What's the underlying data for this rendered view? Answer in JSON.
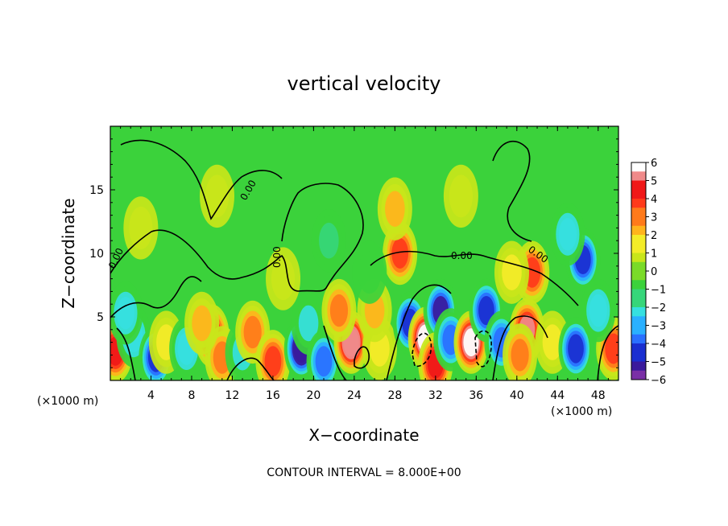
{
  "chart_data": {
    "type": "heatmap",
    "title": "vertical velocity",
    "xlabel": "X−coordinate",
    "ylabel": "Z−coordinate",
    "x_unit_label": "(×1000 m)",
    "y_unit_label": "(×1000 m)",
    "xlim": [
      0,
      50
    ],
    "ylim": [
      0,
      20
    ],
    "x_ticks": [
      4,
      8,
      12,
      16,
      20,
      24,
      28,
      32,
      36,
      40,
      44,
      48
    ],
    "y_ticks": [
      5,
      10,
      15
    ],
    "colorbar_range": [
      -6,
      6
    ],
    "colorbar_ticks": [
      "6",
      "5",
      "4",
      "3",
      "2",
      "1",
      "0",
      "−1",
      "−2",
      "−3",
      "−4",
      "−5",
      "−6"
    ],
    "colormap": [
      "#7a2fa6",
      "#3a1a9c",
      "#1a2fd0",
      "#2a70ff",
      "#2ab0ff",
      "#36e0e0",
      "#36d67a",
      "#3bd23b",
      "#7adb28",
      "#c9e61a",
      "#f4ec28",
      "#ffb41c",
      "#ff7a1a",
      "#ff3a1a",
      "#f01818",
      "#f08a8a",
      "#ffffff"
    ],
    "contour_label": "0.00",
    "note": "CONTOUR INTERVAL = 8.000E+00",
    "cells": [
      {
        "x": 0.5,
        "z": 2.3,
        "w": 4.5
      },
      {
        "x": 2.3,
        "z": 3.5,
        "w": -2.2
      },
      {
        "x": 1.5,
        "z": 5.3,
        "w": -2.5
      },
      {
        "x": 4.5,
        "z": 1.8,
        "w": -4.2
      },
      {
        "x": 5.5,
        "z": 3.0,
        "w": 1.5
      },
      {
        "x": 7.5,
        "z": 2.5,
        "w": -2.3
      },
      {
        "x": 10.0,
        "z": 3.5,
        "w": 4.6
      },
      {
        "x": 11.0,
        "z": 1.8,
        "w": 3.0
      },
      {
        "x": 9.0,
        "z": 4.5,
        "w": 2.0
      },
      {
        "x": 13.0,
        "z": 2.2,
        "w": -2.0
      },
      {
        "x": 14.0,
        "z": 3.8,
        "w": 3.0
      },
      {
        "x": 16.0,
        "z": 1.5,
        "w": 3.5
      },
      {
        "x": 18.8,
        "z": 2.5,
        "w": -5.3
      },
      {
        "x": 19.5,
        "z": 4.5,
        "w": -2.0
      },
      {
        "x": 21.0,
        "z": 1.5,
        "w": -4.0
      },
      {
        "x": 23.7,
        "z": 3.0,
        "w": 5.2
      },
      {
        "x": 22.5,
        "z": 5.5,
        "w": 3.0
      },
      {
        "x": 21.5,
        "z": 11.0,
        "w": -1.8
      },
      {
        "x": 26.5,
        "z": 2.5,
        "w": 1.5
      },
      {
        "x": 26.0,
        "z": 5.5,
        "w": 2.0
      },
      {
        "x": 28.5,
        "z": 10.0,
        "w": 3.5
      },
      {
        "x": 28.0,
        "z": 13.5,
        "w": 2.0
      },
      {
        "x": 29.5,
        "z": 4.5,
        "w": -4.5
      },
      {
        "x": 31.0,
        "z": 3.3,
        "w": 6.0
      },
      {
        "x": 32.5,
        "z": 5.5,
        "w": -5.0
      },
      {
        "x": 32.0,
        "z": 1.3,
        "w": 4.6
      },
      {
        "x": 33.5,
        "z": 3.2,
        "w": -3.5
      },
      {
        "x": 35.5,
        "z": 3.0,
        "w": 6.0
      },
      {
        "x": 37.0,
        "z": 5.5,
        "w": -4.8
      },
      {
        "x": 38.5,
        "z": 3.0,
        "w": -3.5
      },
      {
        "x": 41.0,
        "z": 4.0,
        "w": 5.0
      },
      {
        "x": 40.3,
        "z": 2.0,
        "w": 3.0
      },
      {
        "x": 41.5,
        "z": 8.5,
        "w": 3.5
      },
      {
        "x": 43.5,
        "z": 3.0,
        "w": 1.8
      },
      {
        "x": 45.8,
        "z": 2.5,
        "w": -4.3
      },
      {
        "x": 46.5,
        "z": 9.5,
        "w": -4.2
      },
      {
        "x": 45.0,
        "z": 11.5,
        "w": -2.5
      },
      {
        "x": 49.5,
        "z": 2.5,
        "w": 3.8
      },
      {
        "x": 48.0,
        "z": 5.5,
        "w": -2.5
      },
      {
        "x": 39.5,
        "z": 8.5,
        "w": 1.2
      },
      {
        "x": 17.0,
        "z": 8.0,
        "w": 1.0
      },
      {
        "x": 10.5,
        "z": 14.5,
        "w": 0.8
      },
      {
        "x": 34.5,
        "z": 14.5,
        "w": 1.0
      },
      {
        "x": 3.0,
        "z": 12.0,
        "w": 0.8
      },
      {
        "x": 25.5,
        "z": 8.5,
        "w": -0.8
      }
    ]
  }
}
